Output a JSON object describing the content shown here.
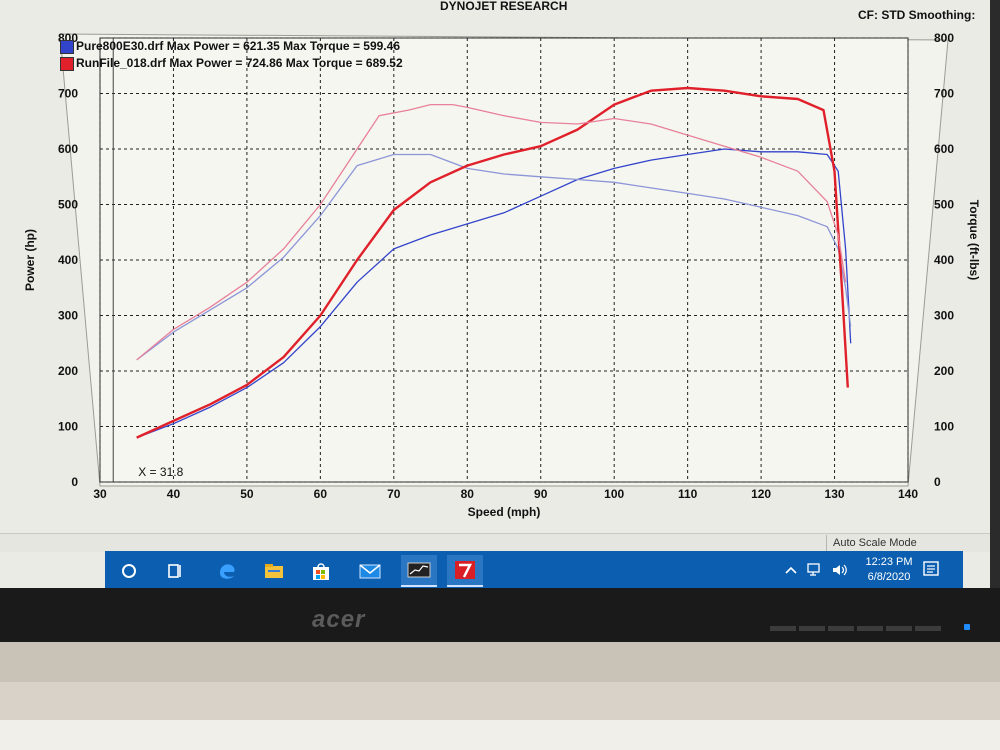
{
  "app": {
    "title": "DYNOJET RESEARCH",
    "cf_label": "CF: STD  Smoothing:"
  },
  "legend": [
    {
      "name": "Pure800E30.drf",
      "max_power_label": "Max Power = 621.35",
      "max_torque_label": "Max Torque = 599.46",
      "color": "#3344cc"
    },
    {
      "name": "RunFile_018.drf",
      "max_power_label": "Max Power = 724.86",
      "max_torque_label": "Max Torque = 689.52",
      "color": "#e0202a"
    }
  ],
  "cursor_readout": "X = 31.8",
  "chart_data": {
    "type": "line",
    "xlabel": "Speed (mph)",
    "ylabel": "Power (hp)",
    "y2label": "Torque (ft-lbs)",
    "xlim": [
      30,
      140
    ],
    "ylim": [
      0,
      800
    ],
    "y2lim": [
      0,
      800
    ],
    "x_ticks": [
      30,
      40,
      50,
      60,
      70,
      80,
      90,
      100,
      110,
      120,
      130,
      140
    ],
    "y_ticks": [
      0,
      100,
      200,
      300,
      400,
      500,
      600,
      700,
      800
    ],
    "y2_ticks": [
      0,
      100,
      200,
      300,
      400,
      500,
      600,
      700,
      800
    ],
    "grid": true,
    "series": [
      {
        "name": "Pure800E30.drf",
        "measure": "power",
        "color": "#3344cc",
        "x": [
          35,
          40,
          45,
          50,
          55,
          60,
          65,
          70,
          75,
          80,
          85,
          90,
          95,
          100,
          105,
          110,
          115,
          120,
          125,
          129,
          130.5,
          131.5,
          132.2
        ],
        "y": [
          80,
          105,
          135,
          170,
          215,
          280,
          360,
          420,
          445,
          465,
          485,
          515,
          545,
          565,
          580,
          590,
          600,
          595,
          595,
          590,
          560,
          420,
          250
        ]
      },
      {
        "name": "Pure800E30.drf",
        "measure": "torque",
        "color": "#8c95d8",
        "x": [
          35,
          40,
          45,
          50,
          55,
          60,
          65,
          70,
          75,
          80,
          85,
          90,
          95,
          100,
          105,
          110,
          115,
          120,
          125,
          129,
          130.5,
          131.5,
          132.2
        ],
        "y": [
          220,
          270,
          310,
          350,
          405,
          480,
          570,
          590,
          590,
          565,
          555,
          550,
          545,
          540,
          530,
          520,
          510,
          495,
          480,
          460,
          420,
          350,
          280
        ]
      },
      {
        "name": "RunFile_018.drf",
        "measure": "power",
        "color": "#e0202a",
        "x": [
          35,
          40,
          45,
          50,
          55,
          60,
          65,
          70,
          75,
          80,
          85,
          90,
          95,
          100,
          105,
          110,
          115,
          120,
          125,
          128.5,
          130,
          131,
          131.8
        ],
        "y": [
          80,
          110,
          140,
          175,
          225,
          300,
          400,
          490,
          540,
          570,
          590,
          605,
          635,
          680,
          705,
          710,
          705,
          695,
          690,
          670,
          560,
          350,
          170
        ]
      },
      {
        "name": "RunFile_018.drf",
        "measure": "torque",
        "color": "#e8809a",
        "x": [
          35,
          40,
          45,
          50,
          55,
          60,
          65,
          68,
          72,
          75,
          78,
          80,
          85,
          90,
          95,
          100,
          105,
          110,
          115,
          120,
          125,
          129,
          130.5,
          131.5
        ],
        "y": [
          220,
          275,
          315,
          360,
          420,
          500,
          600,
          660,
          670,
          680,
          680,
          675,
          660,
          648,
          645,
          655,
          645,
          625,
          605,
          585,
          560,
          505,
          445,
          360
        ]
      }
    ]
  },
  "status": {
    "auto_scale": "Auto Scale Mode"
  },
  "taskbar": {
    "items": [
      {
        "icon": "cortana-circle-icon"
      },
      {
        "icon": "task-view-icon"
      },
      {
        "icon": "edge-browser-icon"
      },
      {
        "icon": "file-explorer-icon"
      },
      {
        "icon": "store-icon"
      },
      {
        "icon": "mail-icon"
      },
      {
        "icon": "dyno-app-icon"
      },
      {
        "icon": "winpep-app-icon"
      }
    ],
    "time": "12:23 PM",
    "date": "6/8/2020"
  },
  "monitor": {
    "brand": "acer"
  }
}
